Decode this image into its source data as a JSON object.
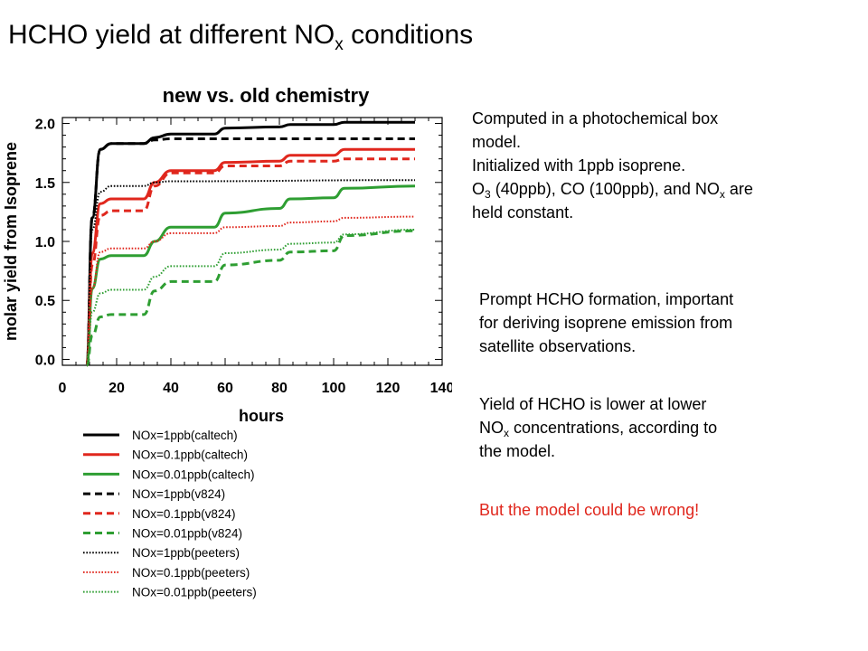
{
  "slide": {
    "title_main": "HCHO yield at different NO",
    "title_sub": "x",
    "title_tail": " conditions"
  },
  "notes": {
    "box1_line1": "Computed in a photochemical box",
    "box1_line2": "model.",
    "box1_line3": "Initialized with 1ppb isoprene.",
    "box1_line4_a": "O",
    "box1_line4_sub1": "3",
    "box1_line4_b": " (40ppb), CO (100ppb), and NO",
    "box1_line4_sub2": "x",
    "box1_line4_c": " are",
    "box1_line5": "held constant.",
    "box2_line1": "Prompt HCHO formation, important",
    "box2_line2": "for deriving isoprene emission from",
    "box2_line3": "satellite observations.",
    "box3_line1": "Yield of HCHO is lower at lower",
    "box3_line2_a": "NO",
    "box3_line2_sub": "x",
    "box3_line2_b": " concentrations, according to",
    "box3_line3": "the model.",
    "warning": "But the model could be wrong!",
    "warning_color": "#e0271d"
  },
  "chart_data": {
    "type": "line",
    "title": "new vs. old chemistry",
    "xlabel": "hours",
    "ylabel": "molar yield from Isoprene",
    "xlim": [
      0,
      140
    ],
    "ylim": [
      -0.05,
      2.05
    ],
    "xticks": [
      0,
      20,
      40,
      60,
      80,
      100,
      120,
      140
    ],
    "yticks": [
      "0.0",
      "0.5",
      "1.0",
      "1.5",
      "2.0"
    ],
    "yticks_values": [
      0.0,
      0.5,
      1.0,
      1.5,
      2.0
    ],
    "legend_position": "below",
    "series": [
      {
        "name": "NOx=1ppb(caltech)",
        "color": "#000000",
        "style": "solid",
        "x": [
          9,
          11,
          14,
          18,
          30,
          34,
          40,
          56,
          60,
          80,
          84,
          100,
          104,
          130
        ],
        "y": [
          -0.05,
          1.2,
          1.78,
          1.83,
          1.83,
          1.88,
          1.91,
          1.91,
          1.96,
          1.97,
          1.99,
          1.99,
          2.01,
          2.01
        ]
      },
      {
        "name": "NOx=0.1ppb(caltech)",
        "color": "#e0271d",
        "style": "solid",
        "x": [
          9,
          11,
          14,
          18,
          30,
          34,
          40,
          56,
          60,
          80,
          84,
          100,
          104,
          130
        ],
        "y": [
          -0.05,
          0.9,
          1.32,
          1.36,
          1.36,
          1.5,
          1.6,
          1.6,
          1.67,
          1.68,
          1.73,
          1.73,
          1.78,
          1.78
        ]
      },
      {
        "name": "NOx=0.01ppb(caltech)",
        "color": "#2e9e32",
        "style": "solid",
        "x": [
          9,
          11,
          14,
          18,
          30,
          34,
          40,
          56,
          60,
          80,
          84,
          100,
          104,
          130
        ],
        "y": [
          -0.05,
          0.6,
          0.85,
          0.88,
          0.88,
          1.0,
          1.12,
          1.12,
          1.24,
          1.28,
          1.36,
          1.37,
          1.45,
          1.47
        ]
      },
      {
        "name": "NOx=1ppb(v824)",
        "color": "#000000",
        "style": "dashed",
        "x": [
          9,
          11,
          14,
          18,
          30,
          34,
          40,
          130
        ],
        "y": [
          -0.05,
          1.2,
          1.78,
          1.83,
          1.83,
          1.86,
          1.87,
          1.87
        ]
      },
      {
        "name": "NOx=0.1ppb(v824)",
        "color": "#e0271d",
        "style": "dashed",
        "x": [
          9,
          11,
          14,
          18,
          30,
          34,
          40,
          56,
          60,
          80,
          84,
          100,
          104,
          130
        ],
        "y": [
          -0.05,
          0.8,
          1.22,
          1.26,
          1.26,
          1.47,
          1.58,
          1.58,
          1.64,
          1.64,
          1.68,
          1.68,
          1.7,
          1.7
        ]
      },
      {
        "name": "NOx=0.01ppb(v824)",
        "color": "#2e9e32",
        "style": "dashed",
        "x": [
          9,
          11,
          14,
          18,
          30,
          34,
          40,
          56,
          60,
          80,
          84,
          100,
          104,
          130
        ],
        "y": [
          -0.05,
          0.2,
          0.36,
          0.38,
          0.38,
          0.58,
          0.66,
          0.66,
          0.8,
          0.84,
          0.91,
          0.92,
          1.05,
          1.09
        ]
      },
      {
        "name": "NOx=1ppb(peeters)",
        "color": "#000000",
        "style": "dotted",
        "x": [
          9,
          11,
          14,
          18,
          30,
          34,
          40,
          130
        ],
        "y": [
          -0.05,
          1.1,
          1.42,
          1.47,
          1.47,
          1.5,
          1.51,
          1.52
        ]
      },
      {
        "name": "NOx=0.1ppb(peeters)",
        "color": "#e0271d",
        "style": "dotted",
        "x": [
          9,
          11,
          14,
          18,
          30,
          34,
          40,
          56,
          60,
          80,
          84,
          100,
          104,
          130
        ],
        "y": [
          -0.05,
          0.6,
          0.91,
          0.94,
          0.94,
          1.0,
          1.07,
          1.07,
          1.12,
          1.13,
          1.16,
          1.17,
          1.2,
          1.21
        ]
      },
      {
        "name": "NOx=0.01ppb(peeters)",
        "color": "#2e9e32",
        "style": "dotted",
        "x": [
          9,
          11,
          14,
          18,
          30,
          34,
          40,
          56,
          60,
          80,
          84,
          100,
          104,
          130
        ],
        "y": [
          -0.05,
          0.4,
          0.56,
          0.59,
          0.59,
          0.7,
          0.79,
          0.79,
          0.9,
          0.93,
          0.98,
          0.99,
          1.06,
          1.1
        ]
      }
    ]
  }
}
